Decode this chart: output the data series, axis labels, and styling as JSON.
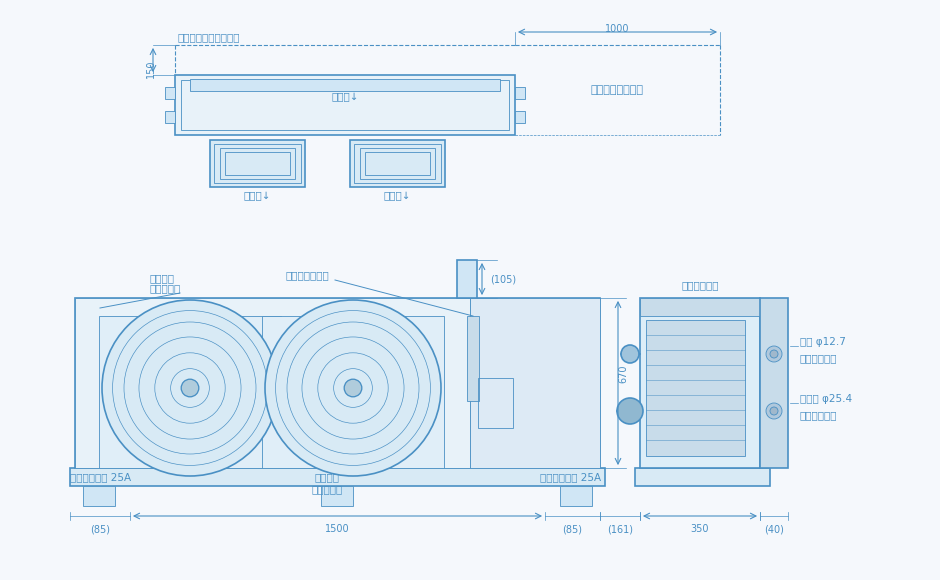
{
  "bg_color": "#f5f8fc",
  "line_color": "#4a90c4",
  "lw_main": 1.2,
  "lw_thin": 0.6,
  "fs_label": 7.5,
  "fs_dim": 7.0,
  "top_view": {
    "label_haimensechi": "背面設置最小スペース",
    "label_sukikomi": "吸込口↓",
    "label_fuki1": "吹出口↓",
    "label_fuki2": "吹出口↓",
    "label_service": "サービススペース",
    "dim_1000": "1000",
    "dim_150": "150"
  },
  "front_view": {
    "label_suekinggu": "据付金具",
    "label_tenpuki": "（天吹時）",
    "label_service_panel": "サービスパネル",
    "label_drain1": "ドレンパイプ 25A",
    "label_drain2": "ドレンパイプ 25A",
    "label_suekinggu2": "据付金具",
    "label_yukachi": "（床置時）",
    "dim_105": "(105)",
    "dim_670": "670",
    "dim_85L": "(85)",
    "dim_1500": "1500",
    "dim_85R": "(85)"
  },
  "side_view": {
    "label_denso": "電装ボックス",
    "label_liquid": "液管 φ12.7",
    "label_rouL": "ロウ付け接続",
    "label_gas": "ガス管 φ25.4",
    "label_rouG": "ロウ付け接続",
    "dim_161": "(161)",
    "dim_350": "350",
    "dim_40": "(40)"
  }
}
